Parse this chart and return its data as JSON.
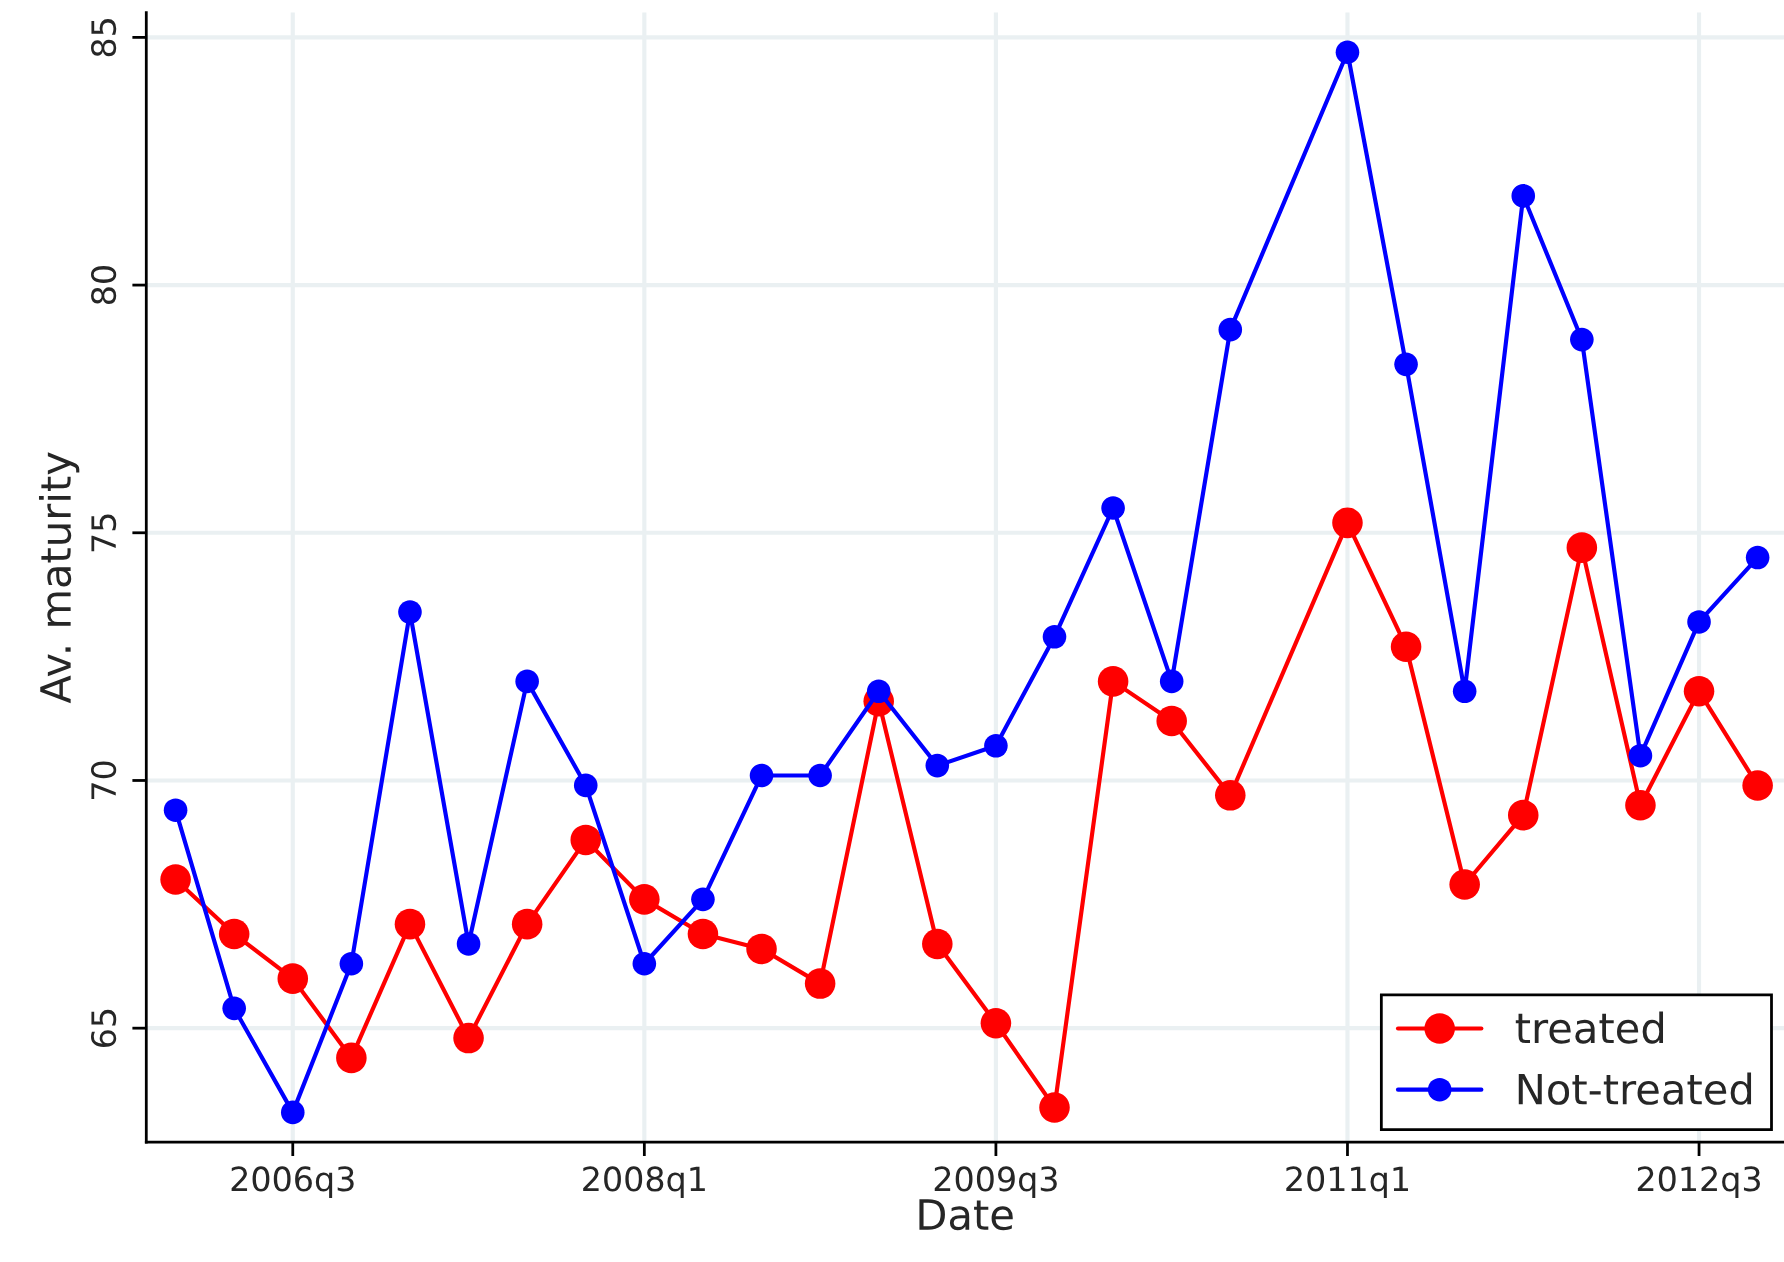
{
  "chart_data": {
    "type": "line",
    "xlabel": "Date",
    "ylabel": "Av. maturity",
    "categories": [
      null,
      null,
      "2006q3",
      null,
      null,
      null,
      null,
      null,
      "2008q1",
      null,
      null,
      null,
      null,
      null,
      "2009q3",
      null,
      null,
      null,
      null,
      null,
      "2011q1",
      null,
      null,
      null,
      null,
      null,
      "2012q3",
      null
    ],
    "series": [
      {
        "name": "treated",
        "color": "#ff0000",
        "values": [
          68.0,
          66.9,
          66.0,
          64.4,
          67.1,
          64.8,
          67.1,
          68.8,
          67.6,
          66.9,
          66.6,
          65.9,
          71.6,
          66.7,
          65.1,
          63.4,
          72.0,
          71.2,
          69.7,
          null,
          75.2,
          72.7,
          67.9,
          69.3,
          74.7,
          69.5,
          71.8,
          69.9
        ]
      },
      {
        "name": "Not-treated",
        "color": "#0000ff",
        "values": [
          69.4,
          65.4,
          63.3,
          66.3,
          73.4,
          66.7,
          72.0,
          69.9,
          66.3,
          67.6,
          70.1,
          70.1,
          71.8,
          70.3,
          70.7,
          72.9,
          75.5,
          72.0,
          79.1,
          null,
          84.7,
          78.4,
          71.8,
          81.8,
          78.9,
          70.5,
          73.2,
          74.5
        ]
      }
    ],
    "ylim": [
      62.7,
      85.5
    ],
    "yticks": [
      65,
      70,
      75,
      80,
      85
    ],
    "grid": true,
    "legend": "bottom right",
    "marker": "circle",
    "line_style": "solid"
  }
}
